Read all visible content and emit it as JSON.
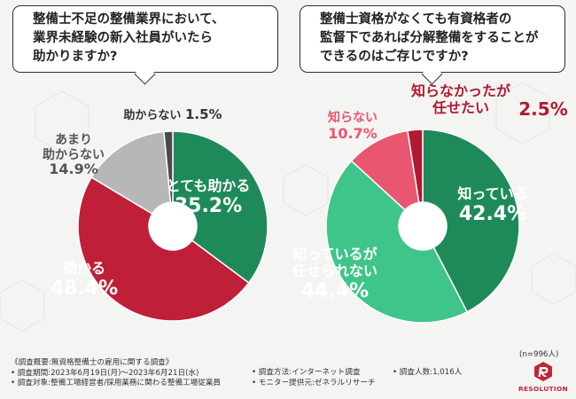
{
  "questions": {
    "left": {
      "line1": "整備士不足の整備業界において、",
      "line2": "業界未経験の新入社員がいたら",
      "line3": "助かりますか?"
    },
    "right": {
      "line1": "整備士資格がなくても有資格者の",
      "line2": "監督下であれば分解整備をすることが",
      "line3": "できるのはご存じですか?"
    }
  },
  "chart_data": [
    {
      "type": "pie",
      "title": "業界未経験の新入社員がいたら助かりますか?",
      "slices": [
        {
          "label_lines": [
            "とても助かる"
          ],
          "value": 35.2,
          "value_text": "35.2%",
          "color": "#1e8a5a",
          "label_color": "#ffffff"
        },
        {
          "label_lines": [
            "助かる"
          ],
          "value": 48.4,
          "value_text": "48.4%",
          "color": "#c01f38",
          "label_color": "#ffffff"
        },
        {
          "label_lines": [
            "あまり",
            "助からない"
          ],
          "value": 14.9,
          "value_text": "14.9%",
          "color": "#b7b7b7",
          "label_color": "#555555"
        },
        {
          "label_lines": [
            "助からない"
          ],
          "value": 1.5,
          "value_text": "1.5%",
          "color": "#4a4a4a",
          "label_color": "#333333"
        }
      ]
    },
    {
      "type": "pie",
      "title": "有資格者の監督下であれば分解整備をすることができるのはご存じですか?",
      "slices": [
        {
          "label_lines": [
            "知っている"
          ],
          "value": 42.4,
          "value_text": "42.4%",
          "color": "#1e8a5a",
          "label_color": "#ffffff"
        },
        {
          "label_lines": [
            "知っているが",
            "任せられない"
          ],
          "value": 44.4,
          "value_text": "44.4%",
          "color": "#3fc48a",
          "label_color": "#ffffff"
        },
        {
          "label_lines": [
            "知らない"
          ],
          "value": 10.7,
          "value_text": "10.7%",
          "color": "#e8566f",
          "label_color": "#e8566f"
        },
        {
          "label_lines": [
            "知らなかったが",
            "任せたい"
          ],
          "value": 2.5,
          "value_text": "2.5%",
          "color": "#b01a30",
          "label_color": "#b01a30"
        }
      ]
    }
  ],
  "n_note": "(n=996人)",
  "footer": {
    "title": "《調査概要:無資格整備士の雇用に関する調査》",
    "period": "• 調査期間:2023年6月19日(月)〜2023年6月21日(水)",
    "target": "• 調査対象:整備工場経営者/採用業務に関わる整備工場従業員",
    "method": "• 調査方法:インターネット調査",
    "provider": "• モニター提供元:ゼネラルリサーチ",
    "count": "• 調査人数:1,016人"
  },
  "logo": {
    "text": "RESOLUTION",
    "icon": "resolution-logo-icon"
  }
}
